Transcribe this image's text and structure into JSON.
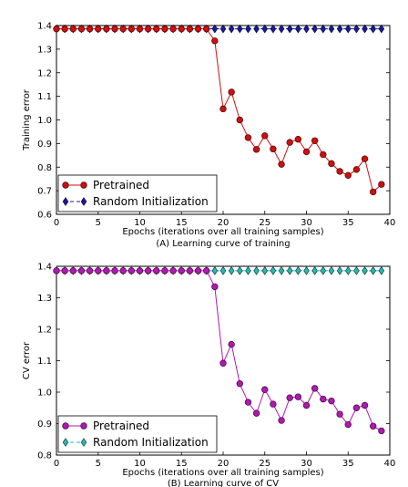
{
  "chart_data": [
    {
      "type": "line",
      "xlabel": "Epochs (iterations over all training samples)",
      "ylabel": "Training error",
      "caption": "(A) Learning curve of training",
      "xlim": [
        0,
        40
      ],
      "ylim": [
        0.6,
        1.4
      ],
      "xticks": [
        0,
        5,
        10,
        15,
        20,
        25,
        30,
        35,
        40
      ],
      "yticks": [
        0.6,
        0.7,
        0.8,
        0.9,
        1.0,
        1.1,
        1.2,
        1.3,
        1.4
      ],
      "ytick_labels": [
        "0.6",
        "0.7",
        "0.8",
        "0.9",
        "1.0",
        "1.1",
        "1.2",
        "1.3",
        "1.4"
      ],
      "legend_position": "bottom-left",
      "series": [
        {
          "name": "Pretrained",
          "color": "#cc1111",
          "marker": "circle",
          "linestyle": "solid",
          "x": [
            0,
            1,
            2,
            3,
            4,
            5,
            6,
            7,
            8,
            9,
            10,
            11,
            12,
            13,
            14,
            15,
            16,
            17,
            18,
            19,
            20,
            21,
            22,
            23,
            24,
            25,
            26,
            27,
            28,
            29,
            30,
            31,
            32,
            33,
            34,
            35,
            36,
            37,
            38,
            39
          ],
          "y": [
            1.386,
            1.386,
            1.386,
            1.386,
            1.386,
            1.386,
            1.386,
            1.386,
            1.386,
            1.386,
            1.386,
            1.386,
            1.386,
            1.386,
            1.386,
            1.386,
            1.386,
            1.386,
            1.386,
            1.335,
            1.047,
            1.118,
            1.0,
            0.925,
            0.875,
            0.933,
            0.877,
            0.812,
            0.905,
            0.918,
            0.865,
            0.912,
            0.853,
            0.815,
            0.782,
            0.765,
            0.79,
            0.835,
            0.695,
            0.727
          ]
        },
        {
          "name": "Random Initialization",
          "color": "#1a1a9e",
          "marker": "diamond",
          "linestyle": "dashed",
          "x": [
            0,
            1,
            2,
            3,
            4,
            5,
            6,
            7,
            8,
            9,
            10,
            11,
            12,
            13,
            14,
            15,
            16,
            17,
            18,
            19,
            20,
            21,
            22,
            23,
            24,
            25,
            26,
            27,
            28,
            29,
            30,
            31,
            32,
            33,
            34,
            35,
            36,
            37,
            38,
            39
          ],
          "y": [
            1.386,
            1.386,
            1.386,
            1.386,
            1.386,
            1.386,
            1.386,
            1.386,
            1.386,
            1.386,
            1.386,
            1.386,
            1.386,
            1.386,
            1.386,
            1.386,
            1.386,
            1.386,
            1.386,
            1.386,
            1.386,
            1.386,
            1.386,
            1.386,
            1.386,
            1.386,
            1.386,
            1.386,
            1.386,
            1.386,
            1.386,
            1.386,
            1.386,
            1.386,
            1.386,
            1.386,
            1.386,
            1.386,
            1.386,
            1.386
          ]
        }
      ]
    },
    {
      "type": "line",
      "xlabel": "Epochs (iterations over all training samples)",
      "ylabel": "CV error",
      "caption": "(B) Learning curve of CV",
      "xlim": [
        0,
        40
      ],
      "ylim": [
        0.8,
        1.4
      ],
      "xticks": [
        0,
        5,
        10,
        15,
        20,
        25,
        30,
        35,
        40
      ],
      "yticks": [
        0.8,
        0.9,
        1.0,
        1.1,
        1.2,
        1.3,
        1.4
      ],
      "ytick_labels": [
        "0.8",
        "0.9",
        "1.0",
        "1.1",
        "1.2",
        "1.3",
        "1.4"
      ],
      "legend_position": "bottom-left",
      "series": [
        {
          "name": "Pretrained",
          "color": "#b019b0",
          "marker": "circle",
          "linestyle": "solid",
          "x": [
            0,
            1,
            2,
            3,
            4,
            5,
            6,
            7,
            8,
            9,
            10,
            11,
            12,
            13,
            14,
            15,
            16,
            17,
            18,
            19,
            20,
            21,
            22,
            23,
            24,
            25,
            26,
            27,
            28,
            29,
            30,
            31,
            32,
            33,
            34,
            35,
            36,
            37,
            38,
            39
          ],
          "y": [
            1.386,
            1.386,
            1.386,
            1.386,
            1.386,
            1.386,
            1.386,
            1.386,
            1.386,
            1.386,
            1.386,
            1.386,
            1.386,
            1.386,
            1.386,
            1.386,
            1.386,
            1.386,
            1.386,
            1.335,
            1.092,
            1.152,
            1.027,
            0.968,
            0.933,
            1.008,
            0.962,
            0.91,
            0.982,
            0.985,
            0.958,
            1.012,
            0.978,
            0.972,
            0.93,
            0.897,
            0.95,
            0.958,
            0.892,
            0.877
          ]
        },
        {
          "name": "Random Initialization",
          "color": "#2fb7b0",
          "marker": "diamond",
          "linestyle": "dashed",
          "x": [
            0,
            1,
            2,
            3,
            4,
            5,
            6,
            7,
            8,
            9,
            10,
            11,
            12,
            13,
            14,
            15,
            16,
            17,
            18,
            19,
            20,
            21,
            22,
            23,
            24,
            25,
            26,
            27,
            28,
            29,
            30,
            31,
            32,
            33,
            34,
            35,
            36,
            37,
            38,
            39
          ],
          "y": [
            1.386,
            1.386,
            1.386,
            1.386,
            1.386,
            1.386,
            1.386,
            1.386,
            1.386,
            1.386,
            1.386,
            1.386,
            1.386,
            1.386,
            1.386,
            1.386,
            1.386,
            1.386,
            1.386,
            1.386,
            1.386,
            1.386,
            1.386,
            1.386,
            1.386,
            1.386,
            1.386,
            1.386,
            1.386,
            1.386,
            1.386,
            1.386,
            1.386,
            1.386,
            1.386,
            1.386,
            1.386,
            1.386,
            1.386,
            1.386
          ]
        }
      ]
    }
  ]
}
